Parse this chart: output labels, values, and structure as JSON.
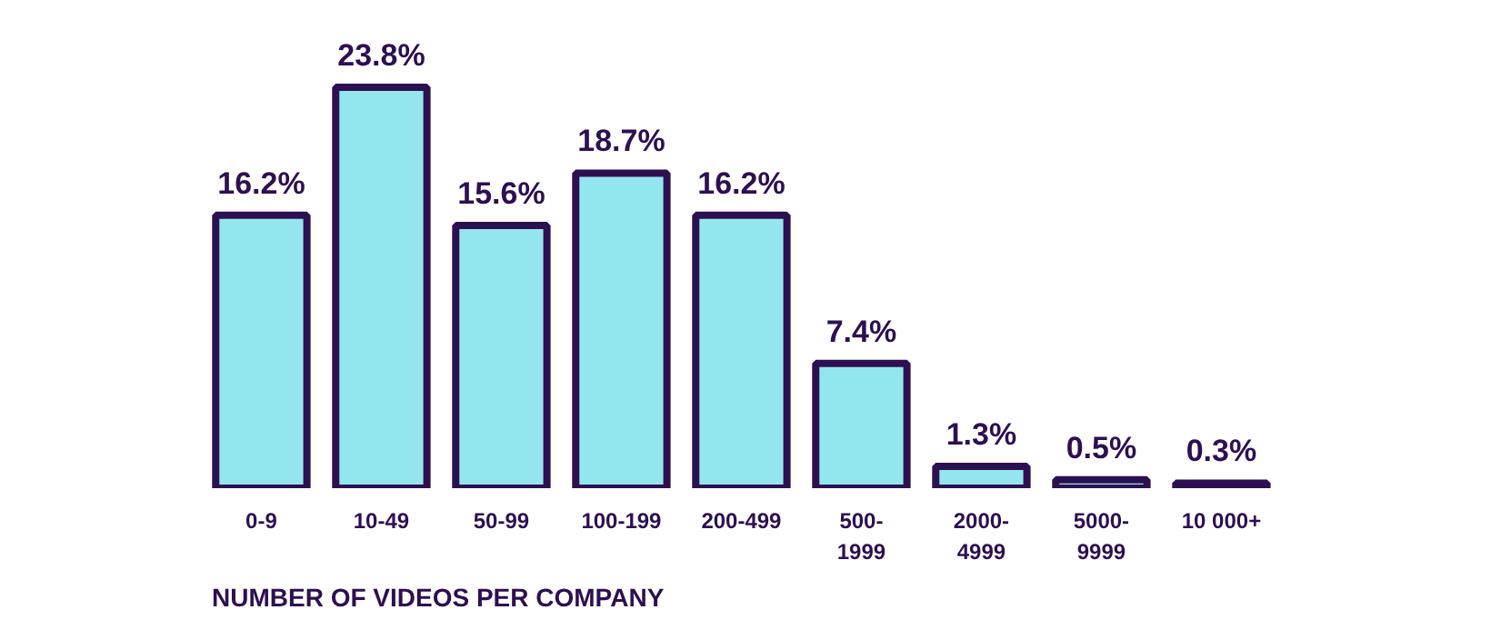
{
  "chart_data": {
    "type": "bar",
    "categories": [
      "0-9",
      "10-49",
      "50-99",
      "100-199",
      "200-499",
      "500-\n1999",
      "2000-\n4999",
      "5000-\n9999",
      "10 000+"
    ],
    "values": [
      16.2,
      23.8,
      15.6,
      18.7,
      16.2,
      7.4,
      1.3,
      0.5,
      0.3
    ],
    "value_labels": [
      "16.2%",
      "23.8%",
      "15.6%",
      "18.7%",
      "16.2%",
      "7.4%",
      "1.3%",
      "0.5%",
      "0.3%"
    ],
    "color": "#94e6ee",
    "xlabel": "NUMBER OF VIDEOS PER COMPANY"
  }
}
